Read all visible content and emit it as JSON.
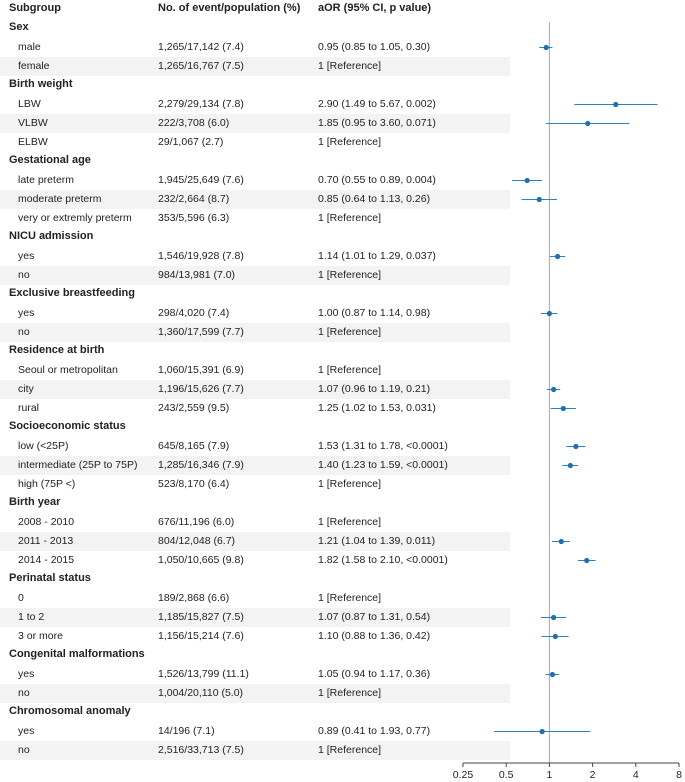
{
  "headers": {
    "subgroup": "Subgroup",
    "events": "No. of event/population (%)",
    "aor": "aOR (95% CI, p value)"
  },
  "colors": {
    "marker": "#1f6fb5",
    "line": "#2f7fc1",
    "refline": "#aaaaaa",
    "shade": "#f3f3f3"
  },
  "rows": [
    {
      "type": "group",
      "label": "Sex"
    },
    {
      "type": "item",
      "label": "male",
      "events": "1,265/17,142 (7.4)",
      "aor": "0.95 (0.85 to 1.05, 0.30)",
      "est": 0.95,
      "lo": 0.85,
      "hi": 1.05
    },
    {
      "type": "item",
      "label": "female",
      "events": "1,265/16,767 (7.5)",
      "aor": "1 [Reference]"
    },
    {
      "type": "group",
      "label": "Birth weight"
    },
    {
      "type": "item",
      "label": "LBW",
      "events": "2,279/29,134 (7.8)",
      "aor": "2.90 (1.49 to 5.67, 0.002)",
      "est": 2.9,
      "lo": 1.49,
      "hi": 5.67
    },
    {
      "type": "item",
      "label": "VLBW",
      "events": "222/3,708 (6.0)",
      "aor": "1.85 (0.95 to 3.60, 0.071)",
      "est": 1.85,
      "lo": 0.95,
      "hi": 3.6
    },
    {
      "type": "item",
      "label": "ELBW",
      "events": "29/1,067 (2.7)",
      "aor": "1 [Reference]"
    },
    {
      "type": "group",
      "label": "Gestational age"
    },
    {
      "type": "item",
      "label": "late preterm",
      "events": "1,945/25,649 (7.6)",
      "aor": "0.70 (0.55 to 0.89, 0.004)",
      "est": 0.7,
      "lo": 0.55,
      "hi": 0.89
    },
    {
      "type": "item",
      "label": "moderate preterm",
      "events": "232/2,664 (8.7)",
      "aor": "0.85 (0.64 to 1.13, 0.26)",
      "est": 0.85,
      "lo": 0.64,
      "hi": 1.13
    },
    {
      "type": "item",
      "label": "very or extremly preterm",
      "events": "353/5,596 (6.3)",
      "aor": "1 [Reference]"
    },
    {
      "type": "group",
      "label": "NICU admission"
    },
    {
      "type": "item",
      "label": "yes",
      "events": "1,546/19,928 (7.8)",
      "aor": "1.14 (1.01 to 1.29, 0.037)",
      "est": 1.14,
      "lo": 1.01,
      "hi": 1.29
    },
    {
      "type": "item",
      "label": "no",
      "events": "984/13,981 (7.0)",
      "aor": "1 [Reference]"
    },
    {
      "type": "group",
      "label": "Exclusive breastfeeding"
    },
    {
      "type": "item",
      "label": "yes",
      "events": "298/4,020 (7.4)",
      "aor": "1.00 (0.87 to 1.14, 0.98)",
      "est": 1.0,
      "lo": 0.87,
      "hi": 1.14
    },
    {
      "type": "item",
      "label": "no",
      "events": "1,360/17,599 (7.7)",
      "aor": "1 [Reference]"
    },
    {
      "type": "group",
      "label": "Residence at birth"
    },
    {
      "type": "item",
      "label": "Seoul or metropolitan",
      "events": "1,060/15,391 (6.9)",
      "aor": "1 [Reference]"
    },
    {
      "type": "item",
      "label": "city",
      "events": "1,196/15,626 (7.7)",
      "aor": "1.07 (0.96 to 1.19, 0.21)",
      "est": 1.07,
      "lo": 0.96,
      "hi": 1.19
    },
    {
      "type": "item",
      "label": "rural",
      "events": "243/2,559 (9.5)",
      "aor": "1.25 (1.02 to 1.53, 0.031)",
      "est": 1.25,
      "lo": 1.02,
      "hi": 1.53
    },
    {
      "type": "group",
      "label": "Socioeconomic status"
    },
    {
      "type": "item",
      "label": "low (<25P)",
      "events": "645/8,165 (7.9)",
      "aor": "1.53 (1.31 to 1.78, <0.0001)",
      "est": 1.53,
      "lo": 1.31,
      "hi": 1.78
    },
    {
      "type": "item",
      "label": "intermediate (25P to 75P)",
      "events": "1,285/16,346 (7.9)",
      "aor": "1.40 (1.23 to 1.59, <0.0001)",
      "est": 1.4,
      "lo": 1.23,
      "hi": 1.59
    },
    {
      "type": "item",
      "label": "high (75P <)",
      "events": "523/8,170 (6.4)",
      "aor": "1 [Reference]"
    },
    {
      "type": "group",
      "label": "Birth year"
    },
    {
      "type": "item",
      "label": "2008 - 2010",
      "events": "676/11,196 (6.0)",
      "aor": "1 [Reference]"
    },
    {
      "type": "item",
      "label": "2011 - 2013",
      "events": "804/12,048 (6.7)",
      "aor": "1.21 (1.04 to 1.39, 0.011)",
      "est": 1.21,
      "lo": 1.04,
      "hi": 1.39
    },
    {
      "type": "item",
      "label": "2014 - 2015",
      "events": "1,050/10,665 (9.8)",
      "aor": "1.82 (1.58 to 2.10, <0.0001)",
      "est": 1.82,
      "lo": 1.58,
      "hi": 2.1
    },
    {
      "type": "group",
      "label": "Perinatal status"
    },
    {
      "type": "item",
      "label": "0",
      "events": "189/2,868 (6.6)",
      "aor": "1 [Reference]"
    },
    {
      "type": "item",
      "label": "1 to 2",
      "events": "1,185/15,827 (7.5)",
      "aor": "1.07 (0.87 to 1.31, 0.54)",
      "est": 1.07,
      "lo": 0.87,
      "hi": 1.31
    },
    {
      "type": "item",
      "label": "3 or more",
      "events": "1,156/15,214 (7.6)",
      "aor": "1.10 (0.88 to 1.36, 0.42)",
      "est": 1.1,
      "lo": 0.88,
      "hi": 1.36
    },
    {
      "type": "group",
      "label": "Congenital malformations"
    },
    {
      "type": "item",
      "label": "yes",
      "events": "1,526/13,799 (11.1)",
      "aor": "1.05 (0.94 to 1.17, 0.36)",
      "est": 1.05,
      "lo": 0.94,
      "hi": 1.17
    },
    {
      "type": "item",
      "label": "no",
      "events": "1,004/20,110 (5.0)",
      "aor": "1 [Reference]"
    },
    {
      "type": "group",
      "label": "Chromosomal anomaly"
    },
    {
      "type": "item",
      "label": "yes",
      "events": "14/196 (7.1)",
      "aor": "0.89 (0.41 to 1.93, 0.77)",
      "est": 0.89,
      "lo": 0.41,
      "hi": 1.93
    },
    {
      "type": "item",
      "label": "no",
      "events": "2,516/33,713 (7.5)",
      "aor": "1 [Reference]"
    }
  ],
  "chart_data": {
    "type": "forest",
    "scale": "log2",
    "xlim": [
      0.25,
      8
    ],
    "reference_value": 1,
    "ticks": [
      "0.25",
      "0.5",
      "1",
      "2",
      "4",
      "8"
    ],
    "tick_values": [
      0.25,
      0.5,
      1,
      2,
      4,
      8
    ],
    "columns": [
      "Subgroup",
      "No. of event/population (%)",
      "aOR (95% CI, p value)"
    ]
  }
}
